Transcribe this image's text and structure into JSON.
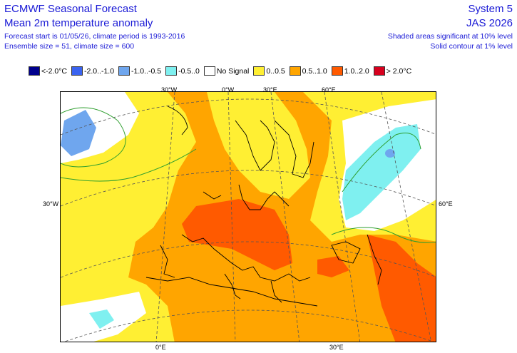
{
  "header": {
    "title": "ECMWF Seasonal Forecast",
    "subtitle": "Mean 2m temperature anomaly",
    "forecast_info": "Forecast start is 01/05/26, climate period is 1993-2016",
    "ensemble_info": "Ensemble size = 51, climate size = 600",
    "system": "System 5",
    "period": "JAS 2026",
    "shaded_note": "Shaded areas significant at 10% level",
    "contour_note": "Solid contour at 1% level"
  },
  "legend": [
    {
      "label": "<-2.0°C",
      "color": "#00008c"
    },
    {
      "label": "-2.0..-1.0",
      "color": "#3a63f0"
    },
    {
      "label": "-1.0..-0.5",
      "color": "#6fa6ee"
    },
    {
      "label": "-0.5..0",
      "color": "#7ff0f0"
    },
    {
      "label": "No Signal",
      "color": "#ffffff"
    },
    {
      "label": "0..0.5",
      "color": "#ffef33"
    },
    {
      "label": "0.5..1.0",
      "color": "#ffa500"
    },
    {
      "label": "1.0..2.0",
      "color": "#ff5a00"
    },
    {
      "label": "> 2.0°C",
      "color": "#d7001e"
    }
  ],
  "map_labels": {
    "top_30w": "30°W",
    "top_0w": "0°W",
    "top_30e": "30°E",
    "top_60e": "60°E",
    "left_30w": "30°W",
    "right_60e": "60°E",
    "bottom_0e": "0°E",
    "bottom_30e": "30°E"
  },
  "colors": {
    "header_text": "#1a1ad6",
    "grid": "#555555",
    "coast": "#000000",
    "contour": "#2e9e2e"
  }
}
